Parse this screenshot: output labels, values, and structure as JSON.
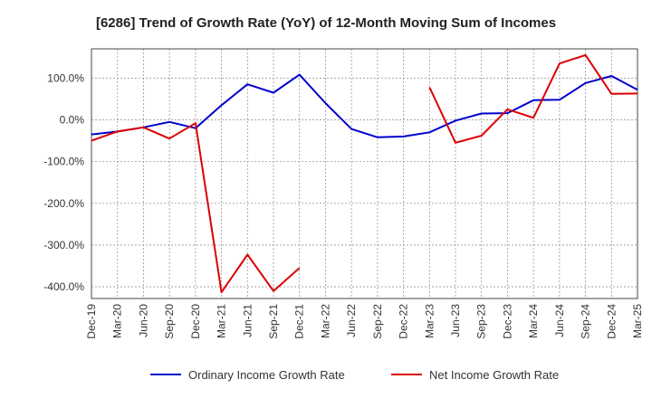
{
  "chart_data": {
    "type": "line",
    "title": "[6286]  Trend of Growth Rate (YoY) of 12-Month Moving Sum of Incomes",
    "x_ticks": [
      "Dec-19",
      "Mar-20",
      "Jun-20",
      "Sep-20",
      "Dec-20",
      "Mar-21",
      "Jun-21",
      "Sep-21",
      "Dec-21",
      "Mar-22",
      "Jun-22",
      "Sep-22",
      "Dec-22",
      "Mar-23",
      "Jun-23",
      "Sep-23",
      "Dec-23",
      "Mar-24",
      "Jun-24",
      "Sep-24",
      "Dec-24",
      "Mar-25"
    ],
    "y_ticks": [
      "100.0%",
      "0.0%",
      "-100.0%",
      "-200.0%",
      "-300.0%",
      "-400.0%"
    ],
    "y_tick_values": [
      100,
      0,
      -100,
      -200,
      -300,
      -400
    ],
    "ylim": [
      -428,
      170
    ],
    "grid": true,
    "legend_position": "bottom",
    "series": [
      {
        "name": "Ordinary Income Growth Rate",
        "color": "#0000cc",
        "values": [
          -35,
          -28,
          -18,
          -5,
          -20,
          35,
          85,
          65,
          108,
          40,
          -22,
          -42,
          -40,
          -30,
          -2,
          15,
          16,
          47,
          48,
          88,
          105,
          72
        ]
      },
      {
        "name": "Net Income Growth Rate",
        "color": "#dd0000",
        "values": [
          -50,
          -28,
          -18,
          -45,
          -8,
          -413,
          -323,
          -410,
          -355,
          null,
          null,
          null,
          null,
          78,
          -55,
          -38,
          25,
          5,
          135,
          155,
          62,
          63
        ]
      }
    ]
  }
}
